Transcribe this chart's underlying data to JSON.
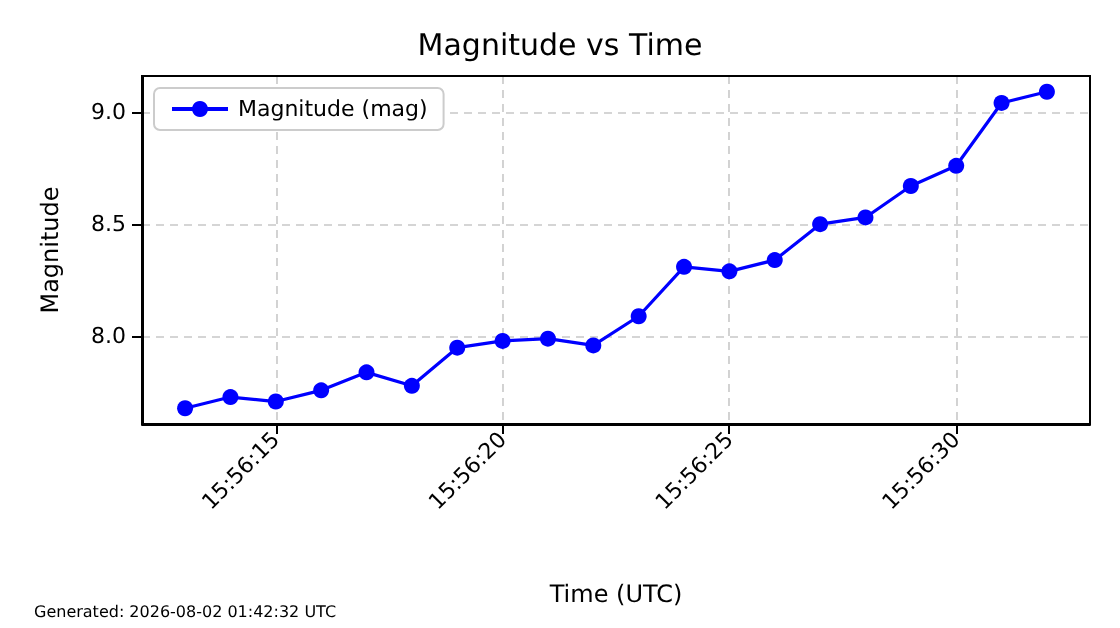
{
  "chart_data": {
    "type": "line",
    "title": "Magnitude vs Time",
    "xlabel": "Time (UTC)",
    "ylabel": "Magnitude",
    "x": [
      15.9369444,
      15.9372222,
      15.9375,
      15.9377778,
      15.9380556,
      15.9383333,
      15.9386111,
      15.9388889,
      15.9391667,
      15.9394444,
      15.9397222,
      15.94,
      15.9402778,
      15.9405556,
      15.9408333,
      15.9411111,
      15.9413889,
      15.9416667,
      15.9419444,
      15.9422222
    ],
    "series": [
      {
        "name": "Magnitude (mag)",
        "color": "#0000ff",
        "values": [
          7.68,
          7.73,
          7.71,
          7.76,
          7.84,
          7.78,
          7.95,
          7.98,
          7.99,
          7.96,
          8.09,
          8.31,
          8.29,
          8.34,
          8.5,
          8.53,
          8.67,
          8.76,
          9.04,
          9.09
        ]
      }
    ],
    "xlim": [
      15.9366806,
      15.9424861
    ],
    "xticks": [
      {
        "value": 15.9375,
        "label": "15:56:15"
      },
      {
        "value": 15.9388889,
        "label": "15:56:20"
      },
      {
        "value": 15.9402778,
        "label": "15:56:25"
      },
      {
        "value": 15.9416667,
        "label": "15:56:30"
      }
    ],
    "ylim": [
      7.61,
      9.16
    ],
    "yticks": [
      {
        "value": 8.0,
        "label": "8.0"
      },
      {
        "value": 8.5,
        "label": "8.5"
      },
      {
        "value": 9.0,
        "label": "9.0"
      }
    ],
    "grid": true,
    "legend": "top left",
    "marker": "circle",
    "line_style": "solid",
    "annotations": [
      "Generated: 2026-08-02 01:42:32 UTC"
    ]
  }
}
